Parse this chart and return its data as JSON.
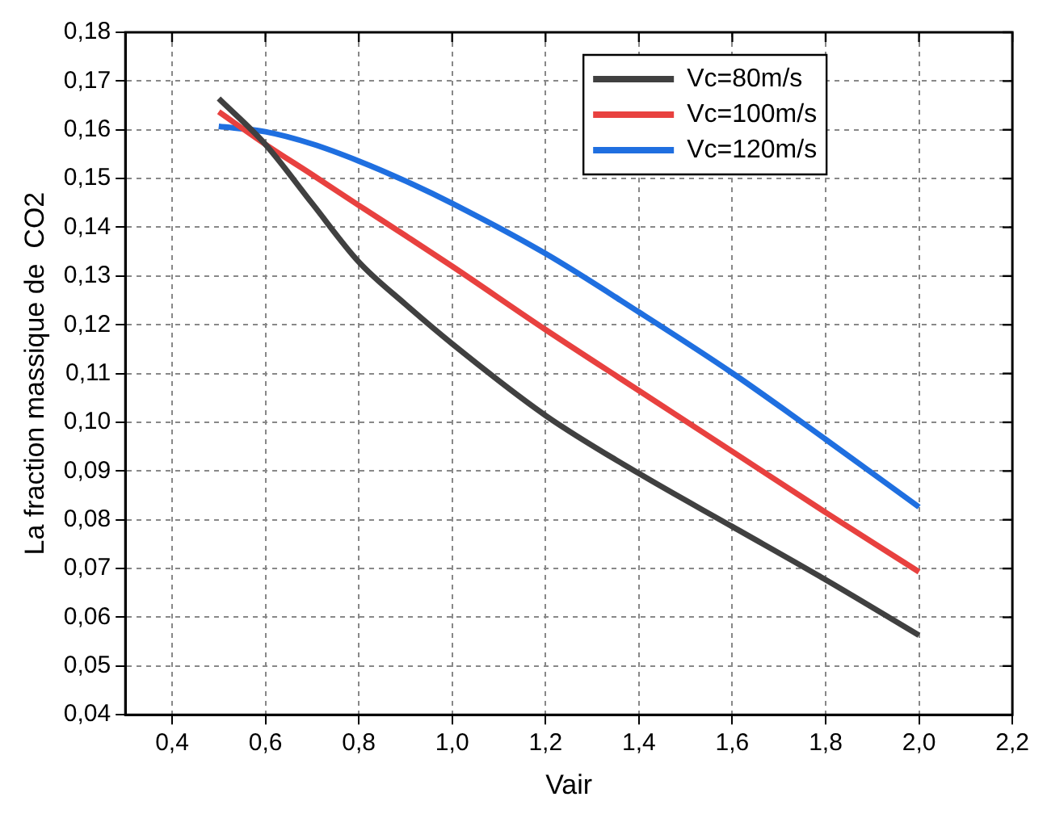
{
  "chart_data": {
    "type": "line",
    "xlabel": "Vair",
    "ylabel": "La fraction massique de  CO2",
    "x": [
      0.5,
      0.6,
      0.7,
      0.8,
      0.9,
      1.0,
      1.2,
      1.4,
      1.6,
      1.8,
      2.0
    ],
    "series": [
      {
        "name": "Vc=80m/s",
        "color": "#404040",
        "values": [
          0.1664,
          0.157,
          0.1449,
          0.1329,
          0.1242,
          0.1161,
          0.1014,
          0.0895,
          0.0786,
          0.0677,
          0.0563
        ]
      },
      {
        "name": "Vc=100m/s",
        "color": "#e8413f",
        "values": [
          0.1637,
          0.157,
          0.1508,
          0.1445,
          0.1383,
          0.132,
          0.119,
          0.1065,
          0.094,
          0.0815,
          0.0693
        ]
      },
      {
        "name": "Vc=120m/s",
        "color": "#1f6fe0",
        "values": [
          0.1607,
          0.1596,
          0.1571,
          0.1536,
          0.1495,
          0.1449,
          0.1346,
          0.1226,
          0.1101,
          0.0965,
          0.0826
        ]
      }
    ],
    "xlim": [
      0.3,
      2.2
    ],
    "xticks": [
      {
        "value": 0.4,
        "label": "0,4"
      },
      {
        "value": 0.6,
        "label": "0,6"
      },
      {
        "value": 0.8,
        "label": "0,8"
      },
      {
        "value": 1.0,
        "label": "1,0"
      },
      {
        "value": 1.2,
        "label": "1,2"
      },
      {
        "value": 1.4,
        "label": "1,4"
      },
      {
        "value": 1.6,
        "label": "1,6"
      },
      {
        "value": 1.8,
        "label": "1,8"
      },
      {
        "value": 2.0,
        "label": "2,0"
      },
      {
        "value": 2.2,
        "label": "2,2"
      }
    ],
    "ylim": [
      0.04,
      0.18
    ],
    "yticks": [
      {
        "value": 0.04,
        "label": "0,04"
      },
      {
        "value": 0.05,
        "label": "0,05"
      },
      {
        "value": 0.06,
        "label": "0,06"
      },
      {
        "value": 0.07,
        "label": "0,07"
      },
      {
        "value": 0.08,
        "label": "0,08"
      },
      {
        "value": 0.09,
        "label": "0,09"
      },
      {
        "value": 0.1,
        "label": "0,10"
      },
      {
        "value": 0.11,
        "label": "0,11"
      },
      {
        "value": 0.12,
        "label": "0,12"
      },
      {
        "value": 0.13,
        "label": "0,13"
      },
      {
        "value": 0.14,
        "label": "0,14"
      },
      {
        "value": 0.15,
        "label": "0,15"
      },
      {
        "value": 0.16,
        "label": "0,16"
      },
      {
        "value": 0.17,
        "label": "0,17"
      },
      {
        "value": 0.18,
        "label": "0,18"
      }
    ],
    "grid": true,
    "legend": "top right",
    "marker": "none",
    "line_style": "solid"
  }
}
